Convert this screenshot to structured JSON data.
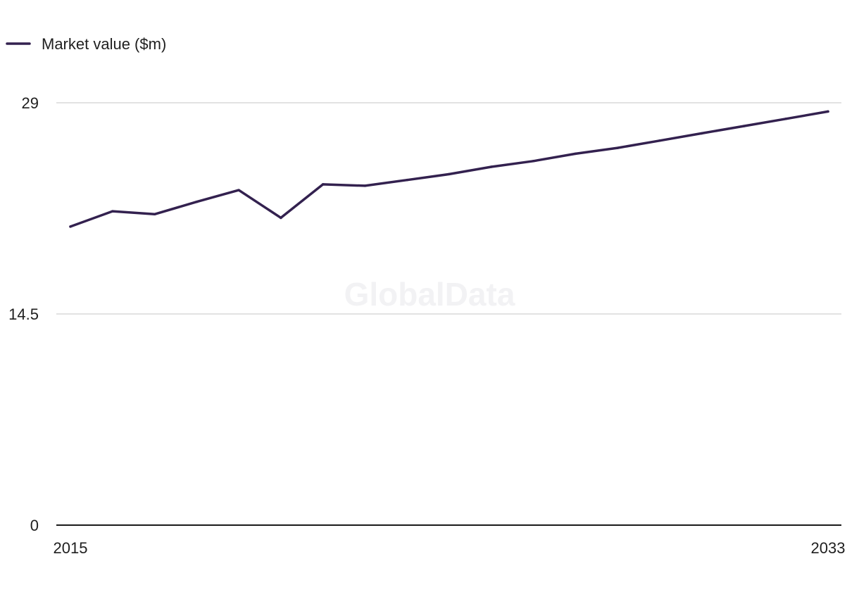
{
  "chart_data": {
    "type": "line",
    "title": "",
    "xlabel": "",
    "ylabel": "",
    "x": [
      2015,
      2016,
      2017,
      2018,
      2019,
      2020,
      2021,
      2022,
      2023,
      2024,
      2025,
      2026,
      2027,
      2028,
      2029,
      2030,
      2031,
      2032,
      2033
    ],
    "series": [
      {
        "name": "Market value ($m)",
        "values": [
          20.5,
          21.55,
          21.35,
          22.2,
          23.0,
          21.1,
          23.4,
          23.3,
          23.7,
          24.1,
          24.6,
          25.0,
          25.5,
          25.9,
          26.4,
          26.9,
          27.4,
          27.9,
          28.4
        ]
      }
    ],
    "ylim": [
      0,
      29
    ],
    "xlim": [
      2015,
      2033
    ],
    "y_ticks": [
      "0",
      "14.5",
      "29"
    ],
    "x_tick_labels": [
      "2015",
      "2033"
    ],
    "grid": true,
    "legend_position": "top-left",
    "watermark": "GlobalData",
    "colors": {
      "line": "#33214f",
      "grid": "#d9d9d9",
      "axis": "#1a1a1a"
    }
  }
}
